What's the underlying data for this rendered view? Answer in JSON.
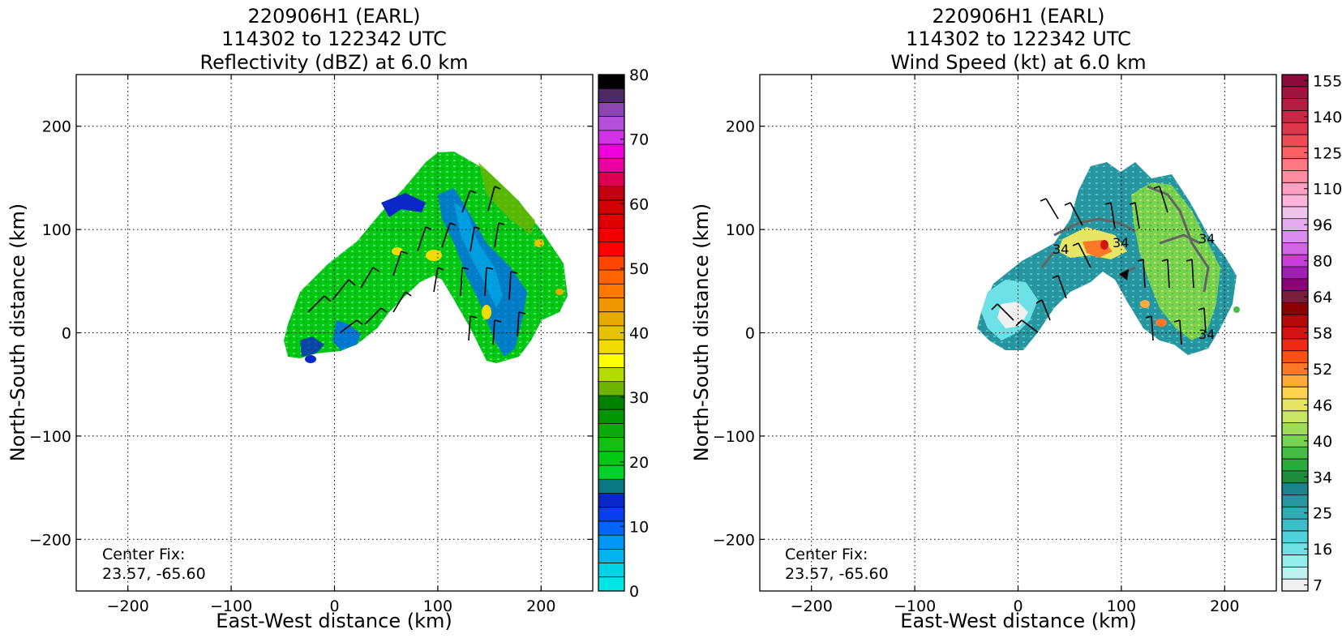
{
  "chart_data": [
    {
      "type": "heatmap",
      "title": [
        "220906H1 (EARL)",
        "114302 to 122342 UTC",
        "Reflectivity (dBZ) at 6.0 km"
      ],
      "xlabel": "East-West distance (km)",
      "ylabel": "North-South distance (km)",
      "xlim": [
        -250,
        250
      ],
      "ylim": [
        -250,
        250
      ],
      "xticks": [
        -200,
        -100,
        0,
        100,
        200
      ],
      "yticks": [
        -200,
        -100,
        0,
        100,
        200
      ],
      "grid": true,
      "annotation": [
        "Center Fix:",
        "23.57, -65.60"
      ],
      "colorbar": {
        "min": 0,
        "max": 80,
        "ticks": [
          0,
          10,
          20,
          30,
          40,
          50,
          60,
          70,
          80
        ],
        "colors": [
          "#00e6e6",
          "#00d2e8",
          "#00b4f0",
          "#0096f5",
          "#0064ff",
          "#0a3cf0",
          "#0a28c8",
          "#0a7882",
          "#00d228",
          "#00c814",
          "#14be14",
          "#0aaa0a",
          "#009600",
          "#008200",
          "#6eb400",
          "#b4dc00",
          "#ffff00",
          "#f0dc00",
          "#e6c300",
          "#e6aa00",
          "#f09600",
          "#ff7800",
          "#ff6400",
          "#ff4600",
          "#ff0000",
          "#f00000",
          "#e10000",
          "#d20000",
          "#c3000f",
          "#dc0050",
          "#eb00a0",
          "#f000dc",
          "#d232e6",
          "#b450dc",
          "#8c46b4",
          "#502864",
          "#000000"
        ]
      }
    },
    {
      "type": "heatmap",
      "title": [
        "220906H1 (EARL)",
        "114302 to 122342 UTC",
        "Wind Speed (kt) at 6.0 km"
      ],
      "xlabel": "East-West distance (km)",
      "ylabel": "North-South distance (km)",
      "xlim": [
        -250,
        250
      ],
      "ylim": [
        -250,
        250
      ],
      "xticks": [
        -200,
        -100,
        0,
        100,
        200
      ],
      "yticks": [
        -200,
        -100,
        0,
        100,
        200
      ],
      "grid": true,
      "annotation": [
        "Center Fix:",
        "23.57, -65.60"
      ],
      "contour_labels": [
        "34",
        "34",
        "34",
        "34"
      ],
      "colorbar": {
        "ticks": [
          "7",
          "16",
          "25",
          "34",
          "40",
          "46",
          "52",
          "58",
          "64",
          "80",
          "96",
          "110",
          "125",
          "140",
          "155"
        ],
        "colors": [
          "#f0f0f0",
          "#bef0f0",
          "#96ebeb",
          "#6ee1e6",
          "#50d2dc",
          "#3cbec8",
          "#32aab4",
          "#2896a0",
          "#1e828c",
          "#1e8c3c",
          "#28aa3c",
          "#46be46",
          "#78d250",
          "#a0dc5a",
          "#c8e664",
          "#e6e664",
          "#ffd250",
          "#ffaa3c",
          "#ff7828",
          "#ff5014",
          "#f02814",
          "#d21414",
          "#b40a0a",
          "#8c0000",
          "#781e3c",
          "#8c0078",
          "#a01eb4",
          "#c83cdc",
          "#d264e6",
          "#dc8cf0",
          "#e6aaf0",
          "#f0c3eb",
          "#ffb4dc",
          "#ffa0c3",
          "#ff8ca0",
          "#ff7882",
          "#ff5f64",
          "#f04b55",
          "#dc374b",
          "#c82846",
          "#b41e41",
          "#a01441",
          "#8c0a3c"
        ]
      }
    }
  ]
}
